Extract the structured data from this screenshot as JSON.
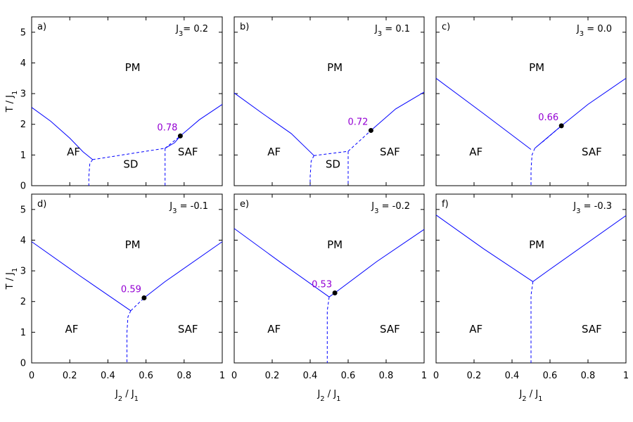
{
  "chart_data": [
    {
      "type": "line",
      "panel": "a)",
      "j3_label": "J",
      "j3_sub": "3",
      "j3_value": "= 0.2",
      "xlim": [
        0,
        1
      ],
      "ylim": [
        0,
        5.5
      ],
      "x_ticks": [
        "0",
        "0.2",
        "0.4",
        "0.6",
        "0.8",
        "1"
      ],
      "y_ticks": [
        "0",
        "1",
        "2",
        "3",
        "4",
        "5"
      ],
      "show_x_ticklabels": false,
      "show_y_ticklabels": true,
      "ylabel": "T / J",
      "ylabel_sub": "1",
      "xlabel": "",
      "color": "#0000ff",
      "solid_lines": [
        [
          [
            0.0,
            2.55
          ],
          [
            0.1,
            2.1
          ],
          [
            0.2,
            1.55
          ],
          [
            0.27,
            1.1
          ],
          [
            0.32,
            0.85
          ]
        ],
        [
          [
            0.7,
            1.22
          ],
          [
            0.75,
            1.4
          ],
          [
            0.78,
            1.62
          ],
          [
            0.88,
            2.15
          ],
          [
            1.0,
            2.65
          ]
        ]
      ],
      "dashed_lines": [
        [
          [
            0.32,
            0.85
          ],
          [
            0.7,
            1.22
          ]
        ],
        [
          [
            0.32,
            0.85
          ],
          [
            0.305,
            0.72
          ],
          [
            0.3,
            0.3
          ],
          [
            0.3,
            0.0
          ]
        ],
        [
          [
            0.7,
            1.22
          ],
          [
            0.7,
            0.0
          ]
        ],
        [
          [
            0.7,
            1.22
          ],
          [
            0.78,
            1.62
          ]
        ]
      ],
      "critical_point": {
        "x": 0.78,
        "y": 1.62,
        "label": "0.78"
      },
      "regions": [
        {
          "label": "PM",
          "x": 0.53,
          "y": 3.85
        },
        {
          "label": "AF",
          "x": 0.22,
          "y": 1.1
        },
        {
          "label": "SD",
          "x": 0.52,
          "y": 0.7
        },
        {
          "label": "SAF",
          "x": 0.82,
          "y": 1.1
        }
      ]
    },
    {
      "type": "line",
      "panel": "b)",
      "j3_label": "J",
      "j3_sub": "3",
      "j3_value": " = 0.1",
      "xlim": [
        0,
        1
      ],
      "ylim": [
        0,
        5.5
      ],
      "x_ticks": [
        "0",
        "0.2",
        "0.4",
        "0.6",
        "0.8",
        "1"
      ],
      "y_ticks": [
        "0",
        "1",
        "2",
        "3",
        "4",
        "5"
      ],
      "show_x_ticklabels": false,
      "show_y_ticklabels": false,
      "ylabel": "",
      "xlabel": "",
      "color": "#0000ff",
      "solid_lines": [
        [
          [
            0.0,
            3.02
          ],
          [
            0.15,
            2.35
          ],
          [
            0.3,
            1.7
          ],
          [
            0.42,
            0.98
          ]
        ],
        [
          [
            0.72,
            1.8
          ],
          [
            0.85,
            2.5
          ],
          [
            1.0,
            3.05
          ]
        ]
      ],
      "dashed_lines": [
        [
          [
            0.42,
            0.98
          ],
          [
            0.6,
            1.12
          ]
        ],
        [
          [
            0.42,
            0.98
          ],
          [
            0.405,
            0.8
          ],
          [
            0.4,
            0.3
          ],
          [
            0.4,
            0.0
          ]
        ],
        [
          [
            0.6,
            1.12
          ],
          [
            0.6,
            0.0
          ]
        ],
        [
          [
            0.6,
            1.12
          ],
          [
            0.72,
            1.8
          ]
        ]
      ],
      "critical_point": {
        "x": 0.72,
        "y": 1.8,
        "label": "0.72"
      },
      "regions": [
        {
          "label": "PM",
          "x": 0.53,
          "y": 3.85
        },
        {
          "label": "AF",
          "x": 0.21,
          "y": 1.1
        },
        {
          "label": "SD",
          "x": 0.52,
          "y": 0.7
        },
        {
          "label": "SAF",
          "x": 0.82,
          "y": 1.1
        }
      ]
    },
    {
      "type": "line",
      "panel": "c)",
      "j3_label": "J",
      "j3_sub": "3",
      "j3_value": " = 0.0",
      "xlim": [
        0,
        1
      ],
      "ylim": [
        0,
        5.5
      ],
      "x_ticks": [
        "0",
        "0.2",
        "0.4",
        "0.6",
        "0.8",
        "1"
      ],
      "y_ticks": [
        "0",
        "1",
        "2",
        "3",
        "4",
        "5"
      ],
      "show_x_ticklabels": false,
      "show_y_ticklabels": false,
      "ylabel": "",
      "xlabel": "",
      "color": "#0000ff",
      "solid_lines": [
        [
          [
            0.0,
            3.5
          ],
          [
            0.25,
            2.35
          ],
          [
            0.5,
            1.18
          ]
        ],
        [
          [
            0.52,
            1.22
          ],
          [
            0.66,
            1.95
          ]
        ],
        [
          [
            0.66,
            1.95
          ],
          [
            0.8,
            2.65
          ],
          [
            1.0,
            3.5
          ]
        ]
      ],
      "dashed_lines": [
        [
          [
            0.52,
            1.22
          ],
          [
            0.505,
            1.0
          ],
          [
            0.5,
            0.5
          ],
          [
            0.5,
            0.0
          ]
        ],
        [
          [
            0.56,
            1.42
          ],
          [
            0.66,
            1.95
          ]
        ]
      ],
      "critical_point": {
        "x": 0.66,
        "y": 1.95,
        "label": "0.66"
      },
      "regions": [
        {
          "label": "PM",
          "x": 0.53,
          "y": 3.85
        },
        {
          "label": "AF",
          "x": 0.21,
          "y": 1.1
        },
        {
          "label": "SAF",
          "x": 0.82,
          "y": 1.1
        }
      ]
    },
    {
      "type": "line",
      "panel": "d)",
      "j3_label": "J",
      "j3_sub": "3",
      "j3_value": " = -0.1",
      "xlim": [
        0,
        1
      ],
      "ylim": [
        0,
        5.5
      ],
      "x_ticks": [
        "0",
        "0.2",
        "0.4",
        "0.6",
        "0.8",
        "1"
      ],
      "y_ticks": [
        "0",
        "1",
        "2",
        "3",
        "4",
        "5"
      ],
      "show_x_ticklabels": true,
      "show_y_ticklabels": true,
      "ylabel": "T / J",
      "ylabel_sub": "1",
      "xlabel": "J",
      "xlabel_sub": "2",
      "xlabel_rest": " / J",
      "xlabel_sub2": "1",
      "color": "#0000ff",
      "solid_lines": [
        [
          [
            0.0,
            3.95
          ],
          [
            0.25,
            2.85
          ],
          [
            0.52,
            1.7
          ]
        ],
        [
          [
            0.59,
            2.12
          ],
          [
            0.7,
            2.65
          ],
          [
            1.0,
            3.95
          ]
        ]
      ],
      "dashed_lines": [
        [
          [
            0.52,
            1.7
          ],
          [
            0.505,
            1.5
          ],
          [
            0.5,
            1.0
          ],
          [
            0.5,
            0.0
          ]
        ],
        [
          [
            0.52,
            1.7
          ],
          [
            0.59,
            2.12
          ]
        ]
      ],
      "critical_point": {
        "x": 0.59,
        "y": 2.12,
        "label": "0.59"
      },
      "regions": [
        {
          "label": "PM",
          "x": 0.53,
          "y": 3.85
        },
        {
          "label": "AF",
          "x": 0.21,
          "y": 1.1
        },
        {
          "label": "SAF",
          "x": 0.82,
          "y": 1.1
        }
      ]
    },
    {
      "type": "line",
      "panel": "e)",
      "j3_label": "J",
      "j3_sub": "3",
      "j3_value": " = -0.2",
      "xlim": [
        0,
        1
      ],
      "ylim": [
        0,
        5.5
      ],
      "x_ticks": [
        "0",
        "0.2",
        "0.4",
        "0.6",
        "0.8",
        "1"
      ],
      "y_ticks": [
        "0",
        "1",
        "2",
        "3",
        "4",
        "5"
      ],
      "show_x_ticklabels": true,
      "show_y_ticklabels": false,
      "ylabel": "",
      "xlabel": "J",
      "xlabel_sub": "2",
      "xlabel_rest": " / J",
      "xlabel_sub2": "1",
      "color": "#0000ff",
      "solid_lines": [
        [
          [
            0.0,
            4.38
          ],
          [
            0.25,
            3.25
          ],
          [
            0.5,
            2.15
          ]
        ],
        [
          [
            0.5,
            2.15
          ],
          [
            0.53,
            2.28
          ]
        ],
        [
          [
            0.53,
            2.28
          ],
          [
            0.75,
            3.3
          ],
          [
            1.0,
            4.35
          ]
        ]
      ],
      "dashed_lines": [
        [
          [
            0.5,
            2.15
          ],
          [
            0.49,
            1.7
          ],
          [
            0.49,
            0.0
          ]
        ]
      ],
      "critical_point": {
        "x": 0.53,
        "y": 2.28,
        "label": "0.53"
      },
      "regions": [
        {
          "label": "PM",
          "x": 0.53,
          "y": 3.85
        },
        {
          "label": "AF",
          "x": 0.21,
          "y": 1.1
        },
        {
          "label": "SAF",
          "x": 0.82,
          "y": 1.1
        }
      ]
    },
    {
      "type": "line",
      "panel": "f)",
      "j3_label": "J",
      "j3_sub": "3",
      "j3_value": " = -0.3",
      "xlim": [
        0,
        1
      ],
      "ylim": [
        0,
        5.5
      ],
      "x_ticks": [
        "0",
        "0.2",
        "0.4",
        "0.6",
        "0.8",
        "1"
      ],
      "y_ticks": [
        "0",
        "1",
        "2",
        "3",
        "4",
        "5"
      ],
      "show_x_ticklabels": true,
      "show_y_ticklabels": false,
      "ylabel": "",
      "xlabel": "J",
      "xlabel_sub": "2",
      "xlabel_rest": " / J",
      "xlabel_sub2": "1",
      "color": "#0000ff",
      "solid_lines": [
        [
          [
            0.0,
            4.82
          ],
          [
            0.25,
            3.72
          ],
          [
            0.51,
            2.65
          ]
        ],
        [
          [
            0.51,
            2.65
          ],
          [
            0.6,
            3.05
          ],
          [
            1.0,
            4.8
          ]
        ]
      ],
      "dashed_lines": [
        [
          [
            0.51,
            2.65
          ],
          [
            0.5,
            2.2
          ],
          [
            0.5,
            0.0
          ]
        ]
      ],
      "critical_point": null,
      "regions": [
        {
          "label": "PM",
          "x": 0.53,
          "y": 3.85
        },
        {
          "label": "AF",
          "x": 0.21,
          "y": 1.1
        },
        {
          "label": "SAF",
          "x": 0.82,
          "y": 1.1
        }
      ]
    }
  ],
  "colors": {
    "line": "#0000ff",
    "critical_label": "#9400d3",
    "critical_point": "#000000",
    "axis": "#000000"
  }
}
